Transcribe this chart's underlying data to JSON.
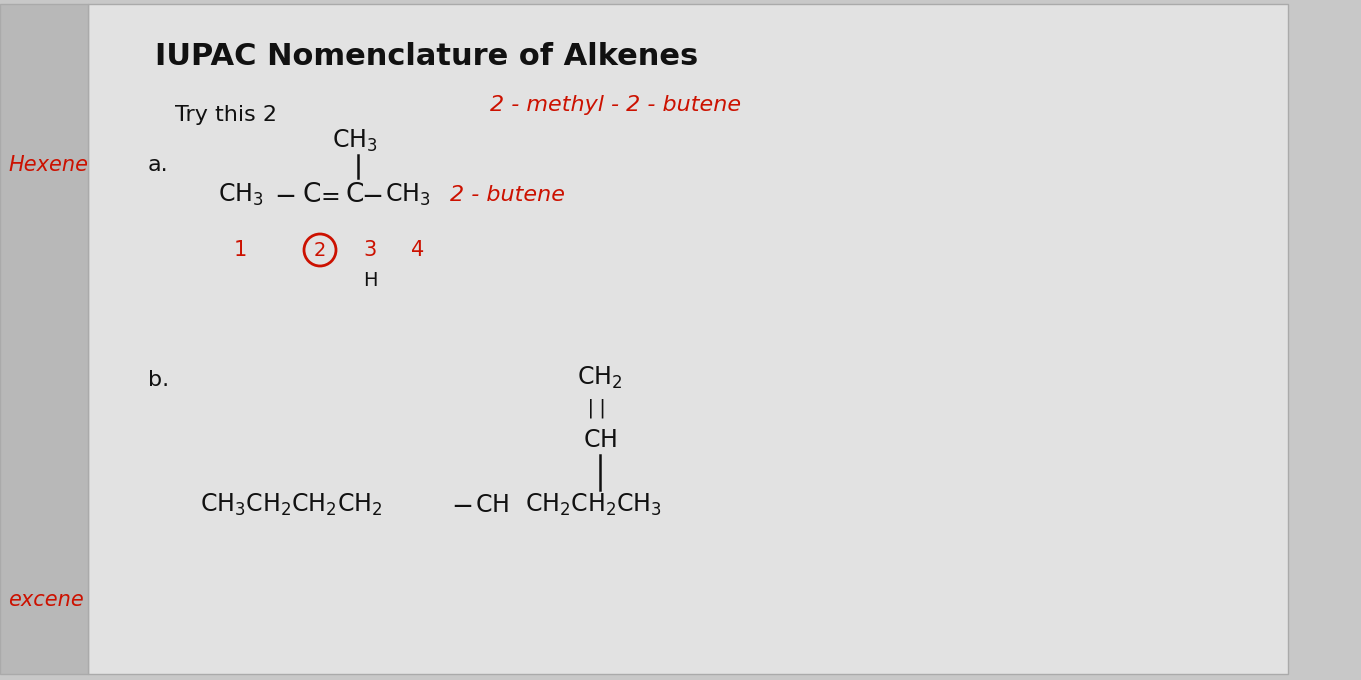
{
  "bg_color": "#c8c8c8",
  "sidebar_color": "#b8b8b8",
  "paper_color": "#e2e2e2",
  "title": "IUPAC Nomenclature of Alkenes",
  "title_fontsize": 22,
  "title_color": "#111111",
  "try_this": "Try this 2",
  "try_fontsize": 16,
  "answer_a": "2 - methyl - 2 - butene",
  "answer_a_color": "#cc1100",
  "answer_a_fontsize": 16,
  "hexene_label": "Hexene",
  "hexene_color": "#cc1100",
  "hexene_fontsize": 15,
  "label_a": "a.",
  "label_b": "b.",
  "label_fontsize": 16,
  "excene_label": "excene",
  "excene_color": "#cc1100",
  "excene_fontsize": 15,
  "struct_color": "#111111",
  "num_color": "#cc1100",
  "struct_fontsize": 17,
  "two_butene_label": "2 - butene",
  "two_butene_color": "#cc1100",
  "two_butene_fontsize": 16
}
